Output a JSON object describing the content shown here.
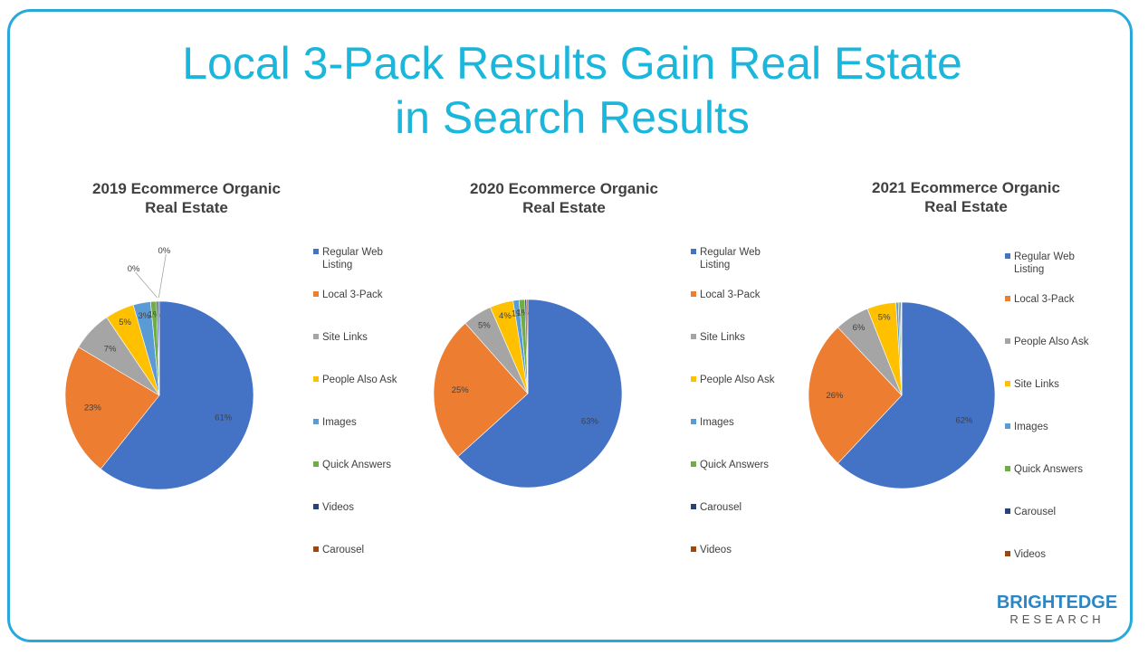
{
  "title": {
    "line1": "Local 3-Pack Results Gain Real Estate",
    "line2": "in Search Results"
  },
  "brand": {
    "name": "BRIGHTEDGE",
    "subtitle": "RESEARCH"
  },
  "colors": {
    "blue": "#4472c4",
    "orange": "#ed7d31",
    "gray": "#a5a5a5",
    "yellow": "#ffc000",
    "light_blue": "#5b9bd5",
    "green": "#70ad47",
    "dark_blue": "#264478",
    "brown": "#9e480e",
    "title_cyan": "#1ab6dc",
    "frame": "#29a8dc"
  },
  "chart_data": [
    {
      "type": "pie",
      "title_line1": "2019 Ecommerce Organic",
      "title_line2": "Real Estate",
      "legend_position": "right",
      "slices": [
        {
          "label": "Regular Web Listing",
          "value": 61,
          "display": "61%",
          "color": "#4472c4"
        },
        {
          "label": "Local 3-Pack",
          "value": 23,
          "display": "23%",
          "color": "#ed7d31"
        },
        {
          "label": "Site Links",
          "value": 7,
          "display": "7%",
          "color": "#a5a5a5"
        },
        {
          "label": "People Also Ask",
          "value": 5,
          "display": "5%",
          "color": "#ffc000"
        },
        {
          "label": "Images",
          "value": 3,
          "display": "3%",
          "color": "#5b9bd5"
        },
        {
          "label": "Quick Answers",
          "value": 1,
          "display": "1%",
          "color": "#70ad47"
        },
        {
          "label": "Videos",
          "value": 0.3,
          "display": "0%",
          "color": "#264478"
        },
        {
          "label": "Carousel",
          "value": 0.2,
          "display": "0%",
          "color": "#9e480e"
        }
      ]
    },
    {
      "type": "pie",
      "title_line1": "2020 Ecommerce Organic",
      "title_line2": "Real Estate",
      "legend_position": "right",
      "slices": [
        {
          "label": "Regular Web Listing",
          "value": 63,
          "display": "63%",
          "color": "#4472c4"
        },
        {
          "label": "Local 3-Pack",
          "value": 25,
          "display": "25%",
          "color": "#ed7d31"
        },
        {
          "label": "Site Links",
          "value": 5,
          "display": "5%",
          "color": "#a5a5a5"
        },
        {
          "label": "People Also Ask",
          "value": 4,
          "display": "4%",
          "color": "#ffc000"
        },
        {
          "label": "Images",
          "value": 1,
          "display": "1%",
          "color": "#5b9bd5"
        },
        {
          "label": "Quick Answers",
          "value": 1,
          "display": "1%",
          "color": "#70ad47"
        },
        {
          "label": "Carousel",
          "value": 0.3,
          "display": "",
          "color": "#264478"
        },
        {
          "label": "Videos",
          "value": 0.2,
          "display": "",
          "color": "#9e480e"
        }
      ]
    },
    {
      "type": "pie",
      "title_line1": "2021 Ecommerce Organic",
      "title_line2": "Real Estate",
      "legend_position": "right",
      "slices": [
        {
          "label": "Regular Web Listing",
          "value": 62,
          "display": "62%",
          "color": "#4472c4"
        },
        {
          "label": "Local 3-Pack",
          "value": 26,
          "display": "26%",
          "color": "#ed7d31"
        },
        {
          "label": "People Also Ask",
          "value": 6,
          "display": "6%",
          "color": "#a5a5a5"
        },
        {
          "label": "Site Links",
          "value": 5,
          "display": "5%",
          "color": "#ffc000"
        },
        {
          "label": "Images",
          "value": 0.4,
          "display": "",
          "color": "#5b9bd5"
        },
        {
          "label": "Quick Answers",
          "value": 0.3,
          "display": "",
          "color": "#70ad47"
        },
        {
          "label": "Carousel",
          "value": 0.2,
          "display": "",
          "color": "#264478"
        },
        {
          "label": "Videos",
          "value": 0.1,
          "display": "",
          "color": "#9e480e"
        }
      ]
    }
  ]
}
